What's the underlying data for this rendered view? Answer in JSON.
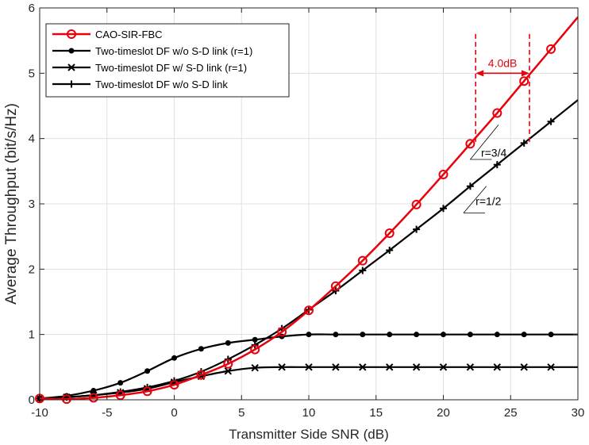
{
  "chart_data": {
    "type": "line",
    "title": "",
    "xlabel": "Transmitter Side SNR (dB)",
    "ylabel": "Average Throughput (bit/s/Hz)",
    "xlim": [
      -10,
      30
    ],
    "ylim": [
      0,
      6
    ],
    "xticks": [
      -10,
      -5,
      0,
      5,
      10,
      15,
      20,
      25,
      30
    ],
    "yticks": [
      0,
      1,
      2,
      3,
      4,
      5,
      6
    ],
    "grid": true,
    "legend_position": "top-left",
    "colors": {
      "red": "#e8000b",
      "black": "#000000"
    },
    "series": [
      {
        "name": "CAO-SIR-FBC",
        "color": "#e8000b",
        "marker": "circle",
        "x": [
          -10,
          -8,
          -6,
          -4,
          -2,
          0,
          2,
          4,
          6,
          8,
          10,
          12,
          14,
          16,
          18,
          20,
          22,
          24,
          26,
          28,
          30
        ],
        "y": [
          0.02,
          0.01,
          0.03,
          0.07,
          0.13,
          0.23,
          0.38,
          0.55,
          0.77,
          1.04,
          1.37,
          1.74,
          2.13,
          2.55,
          2.99,
          3.45,
          3.92,
          4.39,
          4.88,
          5.37,
          5.86
        ],
        "marker_x": [
          -10,
          -8,
          -6,
          -4,
          -2,
          0,
          2,
          4,
          6,
          8,
          10,
          12,
          14,
          16,
          18,
          20,
          22,
          24,
          26,
          28
        ]
      },
      {
        "name": "Two-timeslot DF w/o S-D link (r=1)",
        "color": "#000000",
        "marker": "dot",
        "x": [
          -10,
          -8,
          -6,
          -4,
          -2,
          0,
          2,
          4,
          6,
          8,
          10,
          12,
          14,
          16,
          18,
          20,
          22,
          24,
          26,
          28,
          30
        ],
        "y": [
          0.02,
          0.06,
          0.14,
          0.26,
          0.44,
          0.64,
          0.78,
          0.87,
          0.92,
          0.97,
          1.0,
          1.0,
          1.0,
          1.0,
          1.0,
          1.0,
          1.0,
          1.0,
          1.0,
          1.0,
          1.0
        ],
        "marker_x": [
          -10,
          -8,
          -6,
          -4,
          -2,
          0,
          2,
          4,
          6,
          8,
          10,
          12,
          14,
          16,
          18,
          20,
          22,
          24,
          26,
          28
        ]
      },
      {
        "name": "Two-timeslot DF w/ S-D link (r=1)",
        "color": "#000000",
        "marker": "x",
        "x": [
          -10,
          -8,
          -6,
          -4,
          -2,
          0,
          2,
          4,
          6,
          8,
          10,
          12,
          14,
          16,
          18,
          20,
          22,
          24,
          26,
          28,
          30
        ],
        "y": [
          0.02,
          0.04,
          0.07,
          0.11,
          0.17,
          0.27,
          0.36,
          0.44,
          0.49,
          0.5,
          0.5,
          0.5,
          0.5,
          0.5,
          0.5,
          0.5,
          0.5,
          0.5,
          0.5,
          0.5,
          0.5
        ],
        "marker_x": [
          -10,
          -8,
          -6,
          -4,
          -2,
          0,
          2,
          4,
          6,
          8,
          10,
          12,
          14,
          16,
          18,
          20,
          22,
          24,
          26,
          28
        ]
      },
      {
        "name": "Two-timeslot DF w/o S-D link",
        "color": "#000000",
        "marker": "plus",
        "x": [
          -10,
          -8,
          -6,
          -4,
          -2,
          0,
          2,
          4,
          6,
          8,
          10,
          12,
          14,
          16,
          18,
          20,
          22,
          24,
          26,
          28,
          30
        ],
        "y": [
          0.02,
          0.04,
          0.07,
          0.12,
          0.19,
          0.29,
          0.43,
          0.62,
          0.84,
          1.09,
          1.38,
          1.67,
          1.98,
          2.29,
          2.61,
          2.93,
          3.27,
          3.6,
          3.93,
          4.26,
          4.59
        ],
        "marker_x": [
          -10,
          -8,
          -6,
          -4,
          -2,
          0,
          2,
          4,
          6,
          8,
          10,
          12,
          14,
          16,
          18,
          20,
          22,
          24,
          26,
          28
        ]
      }
    ],
    "annotations": {
      "gap_label": "4.0dB",
      "gap_from_x": 22.4,
      "gap_to_x": 26.4,
      "gap_arrow_y": 5.0,
      "gap_line_y_range": [
        3.92,
        5.6
      ],
      "slope_labels": [
        {
          "text": "r=3/4",
          "x": 22.8,
          "y": 3.72,
          "line_x": [
            22.0,
            24.1
          ],
          "line_y": [
            3.68,
            4.21
          ],
          "base_y": 3.68
        },
        {
          "text": "r=1/2",
          "x": 22.4,
          "y": 2.98,
          "line_x": [
            21.5,
            23.2
          ],
          "line_y": [
            2.86,
            3.27
          ],
          "base_y": 2.86
        }
      ]
    }
  }
}
